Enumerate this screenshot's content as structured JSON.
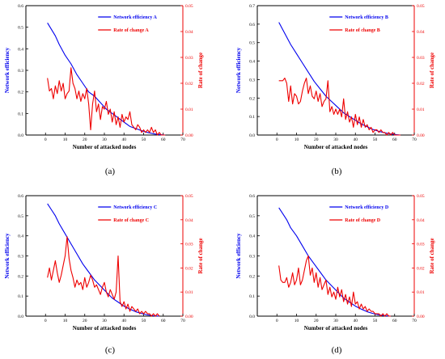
{
  "colors": {
    "efficiency": "#0000ee",
    "rate": "#ee0000",
    "axis": "#000000"
  },
  "chart_data": [
    {
      "type": "line",
      "panel_label": "(a)",
      "xlabel": "Number of attacked nodes",
      "ylabel_left": "Network efficiency",
      "ylabel_right": "Rate of change",
      "xlim": [
        -10,
        70
      ],
      "xticks": [
        "0",
        "10",
        "20",
        "30",
        "40",
        "50",
        "60",
        "70"
      ],
      "ylim_left": [
        0,
        0.6
      ],
      "yticks_left": [
        "0.0",
        "0.1",
        "0.2",
        "0.3",
        "0.4",
        "0.5",
        "0.6"
      ],
      "ylim_right": [
        0,
        0.05
      ],
      "yticks_right": [
        "0.00",
        "0.01",
        "0.02",
        "0.03",
        "0.04",
        "0.05"
      ],
      "legend_position": "top-right",
      "series": [
        {
          "name": "Network efficiency A",
          "axis": "left",
          "x": [
            1,
            3,
            5,
            7,
            10,
            13,
            16,
            19,
            22,
            25,
            28,
            31,
            34,
            37,
            40,
            43,
            46,
            49,
            52,
            55,
            58,
            61
          ],
          "y": [
            0.52,
            0.49,
            0.46,
            0.42,
            0.37,
            0.33,
            0.28,
            0.24,
            0.2,
            0.18,
            0.15,
            0.12,
            0.1,
            0.08,
            0.06,
            0.04,
            0.03,
            0.02,
            0.012,
            0.006,
            0.002,
            0.0
          ]
        },
        {
          "name": "Rate of change A",
          "axis": "right",
          "x": [
            1,
            2,
            3,
            4,
            5,
            6,
            7,
            8,
            9,
            10,
            11,
            12,
            13,
            14,
            15,
            16,
            17,
            18,
            19,
            20,
            21,
            22,
            23,
            24,
            25,
            26,
            27,
            28,
            29,
            30,
            31,
            32,
            33,
            34,
            35,
            36,
            37,
            38,
            39,
            40,
            41,
            42,
            43,
            44,
            45,
            46,
            47,
            48,
            49,
            50,
            51,
            52,
            53,
            54,
            55,
            56,
            57,
            58,
            59,
            60,
            61
          ],
          "y": [
            0.022,
            0.017,
            0.018,
            0.014,
            0.019,
            0.016,
            0.021,
            0.017,
            0.02,
            0.014,
            0.016,
            0.017,
            0.026,
            0.02,
            0.018,
            0.014,
            0.017,
            0.013,
            0.016,
            0.014,
            0.018,
            0.012,
            0.002,
            0.012,
            0.017,
            0.009,
            0.012,
            0.006,
            0.011,
            0.01,
            0.013,
            0.008,
            0.01,
            0.005,
            0.009,
            0.004,
            0.007,
            0.003,
            0.008,
            0.005,
            0.007,
            0.006,
            0.009,
            0.004,
            0.003,
            0.002,
            0.004,
            0.003,
            0.001,
            0.002,
            0.001,
            0.002,
            0.001,
            0.003,
            0.001,
            0.002,
            0.0,
            0.001,
            0.0,
            0.0,
            0.0
          ]
        }
      ]
    },
    {
      "type": "line",
      "panel_label": "(b)",
      "xlabel": "Number of attacked nodes",
      "ylabel_left": "Network efficiency",
      "ylabel_right": "Rate of change",
      "xlim": [
        -10,
        70
      ],
      "xticks": [
        "0",
        "10",
        "20",
        "30",
        "40",
        "50",
        "60",
        "70"
      ],
      "ylim_left": [
        0,
        0.7
      ],
      "yticks_left": [
        "0.0",
        "0.1",
        "0.2",
        "0.3",
        "0.4",
        "0.5",
        "0.6",
        "0.7"
      ],
      "ylim_right": [
        0,
        0.05
      ],
      "yticks_right": [
        "0.00",
        "0.01",
        "0.02",
        "0.03",
        "0.04",
        "0.05"
      ],
      "legend_position": "top-right",
      "series": [
        {
          "name": "Network efficiency B",
          "axis": "left",
          "x": [
            1,
            3,
            5,
            7,
            10,
            13,
            16,
            19,
            22,
            25,
            28,
            31,
            34,
            37,
            40,
            43,
            46,
            49,
            52,
            55,
            58,
            61,
            63
          ],
          "y": [
            0.61,
            0.57,
            0.53,
            0.49,
            0.44,
            0.39,
            0.34,
            0.29,
            0.25,
            0.21,
            0.18,
            0.15,
            0.12,
            0.1,
            0.08,
            0.06,
            0.045,
            0.03,
            0.02,
            0.012,
            0.006,
            0.002,
            0.0
          ]
        },
        {
          "name": "Rate of change B",
          "axis": "right",
          "x": [
            1,
            2,
            3,
            4,
            5,
            6,
            7,
            8,
            9,
            10,
            11,
            12,
            13,
            14,
            15,
            16,
            17,
            18,
            19,
            20,
            21,
            22,
            23,
            24,
            25,
            26,
            27,
            28,
            29,
            30,
            31,
            32,
            33,
            34,
            35,
            36,
            37,
            38,
            39,
            40,
            41,
            42,
            43,
            44,
            45,
            46,
            47,
            48,
            49,
            50,
            51,
            52,
            53,
            54,
            55,
            56,
            57,
            58,
            59,
            60,
            61,
            62,
            63
          ],
          "y": [
            0.021,
            0.021,
            0.021,
            0.022,
            0.02,
            0.013,
            0.019,
            0.012,
            0.016,
            0.015,
            0.012,
            0.013,
            0.017,
            0.02,
            0.022,
            0.016,
            0.019,
            0.015,
            0.014,
            0.017,
            0.013,
            0.016,
            0.011,
            0.013,
            0.014,
            0.021,
            0.009,
            0.011,
            0.008,
            0.01,
            0.008,
            0.01,
            0.007,
            0.014,
            0.006,
            0.009,
            0.005,
            0.007,
            0.003,
            0.008,
            0.004,
            0.007,
            0.003,
            0.006,
            0.003,
            0.004,
            0.002,
            0.003,
            0.001,
            0.002,
            0.002,
            0.001,
            0.002,
            0.001,
            0.001,
            0.0,
            0.001,
            0.0,
            0.001,
            0.0,
            0.0,
            0.0,
            0.0
          ]
        }
      ]
    },
    {
      "type": "line",
      "panel_label": "(c)",
      "xlabel": "Number of attacked nodes",
      "ylabel_left": "Network efficiency",
      "ylabel_right": "Rate of change",
      "xlim": [
        -10,
        70
      ],
      "xticks": [
        "0",
        "10",
        "20",
        "30",
        "40",
        "50",
        "60",
        "70"
      ],
      "ylim_left": [
        0,
        0.6
      ],
      "yticks_left": [
        "0.0",
        "0.1",
        "0.2",
        "0.3",
        "0.4",
        "0.5",
        "0.6"
      ],
      "ylim_right": [
        0,
        0.05
      ],
      "yticks_right": [
        "0.00",
        "0.01",
        "0.02",
        "0.03",
        "0.04",
        "0.05"
      ],
      "legend_position": "top-right",
      "series": [
        {
          "name": "Network efficiency C",
          "axis": "left",
          "x": [
            1,
            3,
            5,
            7,
            10,
            13,
            16,
            19,
            22,
            25,
            28,
            31,
            34,
            37,
            40,
            43,
            46,
            49,
            52,
            55,
            58
          ],
          "y": [
            0.56,
            0.53,
            0.5,
            0.46,
            0.41,
            0.36,
            0.31,
            0.26,
            0.22,
            0.18,
            0.15,
            0.12,
            0.09,
            0.07,
            0.05,
            0.035,
            0.022,
            0.013,
            0.006,
            0.002,
            0.0
          ]
        },
        {
          "name": "Rate of change C",
          "axis": "right",
          "x": [
            1,
            2,
            3,
            4,
            5,
            6,
            7,
            8,
            9,
            10,
            11,
            12,
            13,
            14,
            15,
            16,
            17,
            18,
            19,
            20,
            21,
            22,
            23,
            24,
            25,
            26,
            27,
            28,
            29,
            30,
            31,
            32,
            33,
            34,
            35,
            36,
            37,
            38,
            39,
            40,
            41,
            42,
            43,
            44,
            45,
            46,
            47,
            48,
            49,
            50,
            51,
            52,
            53,
            54,
            55,
            56,
            57,
            58
          ],
          "y": [
            0.016,
            0.02,
            0.015,
            0.019,
            0.023,
            0.018,
            0.014,
            0.017,
            0.021,
            0.025,
            0.033,
            0.024,
            0.019,
            0.016,
            0.012,
            0.015,
            0.013,
            0.014,
            0.011,
            0.016,
            0.012,
            0.014,
            0.017,
            0.015,
            0.012,
            0.013,
            0.011,
            0.009,
            0.012,
            0.014,
            0.01,
            0.008,
            0.011,
            0.009,
            0.007,
            0.01,
            0.025,
            0.006,
            0.004,
            0.006,
            0.003,
            0.005,
            0.002,
            0.004,
            0.003,
            0.002,
            0.003,
            0.001,
            0.002,
            0.001,
            0.002,
            0.001,
            0.001,
            0.0,
            0.001,
            0.0,
            0.001,
            0.0
          ]
        }
      ]
    },
    {
      "type": "line",
      "panel_label": "(d)",
      "xlabel": "Number of attacked nodes",
      "ylabel_left": "Network efficiency",
      "ylabel_right": "Rate of change",
      "xlim": [
        -10,
        70
      ],
      "xticks": [
        "0",
        "10",
        "20",
        "30",
        "40",
        "50",
        "60",
        "70"
      ],
      "ylim_left": [
        0,
        0.6
      ],
      "yticks_left": [
        "0.0",
        "0.1",
        "0.2",
        "0.3",
        "0.4",
        "0.5",
        "0.6"
      ],
      "ylim_right": [
        0,
        0.05
      ],
      "yticks_right": [
        "0.00",
        "0.01",
        "0.02",
        "0.03",
        "0.04",
        "0.05"
      ],
      "legend_position": "top-right",
      "series": [
        {
          "name": "Network efficiency D",
          "axis": "left",
          "x": [
            1,
            3,
            5,
            7,
            10,
            13,
            16,
            19,
            22,
            25,
            28,
            31,
            34,
            37,
            40,
            43,
            46,
            49,
            52,
            55,
            58
          ],
          "y": [
            0.54,
            0.51,
            0.48,
            0.44,
            0.4,
            0.35,
            0.3,
            0.26,
            0.22,
            0.18,
            0.15,
            0.12,
            0.09,
            0.07,
            0.05,
            0.035,
            0.022,
            0.013,
            0.006,
            0.002,
            0.0
          ]
        },
        {
          "name": "Rate of change D",
          "axis": "right",
          "x": [
            1,
            2,
            3,
            4,
            5,
            6,
            7,
            8,
            9,
            10,
            11,
            12,
            13,
            14,
            15,
            16,
            17,
            18,
            19,
            20,
            21,
            22,
            23,
            24,
            25,
            26,
            27,
            28,
            29,
            30,
            31,
            32,
            33,
            34,
            35,
            36,
            37,
            38,
            39,
            40,
            41,
            42,
            43,
            44,
            45,
            46,
            47,
            48,
            49,
            50,
            51,
            52,
            53,
            54,
            55,
            56,
            57,
            58
          ],
          "y": [
            0.021,
            0.015,
            0.014,
            0.014,
            0.016,
            0.012,
            0.014,
            0.018,
            0.013,
            0.015,
            0.02,
            0.013,
            0.015,
            0.019,
            0.023,
            0.025,
            0.017,
            0.02,
            0.014,
            0.018,
            0.012,
            0.016,
            0.011,
            0.013,
            0.015,
            0.009,
            0.012,
            0.008,
            0.01,
            0.007,
            0.012,
            0.008,
            0.011,
            0.006,
            0.009,
            0.005,
            0.008,
            0.004,
            0.01,
            0.005,
            0.006,
            0.003,
            0.005,
            0.003,
            0.004,
            0.002,
            0.003,
            0.002,
            0.002,
            0.001,
            0.001,
            0.001,
            0.0,
            0.001,
            0.0,
            0.001,
            0.0,
            0.0
          ]
        }
      ]
    }
  ]
}
